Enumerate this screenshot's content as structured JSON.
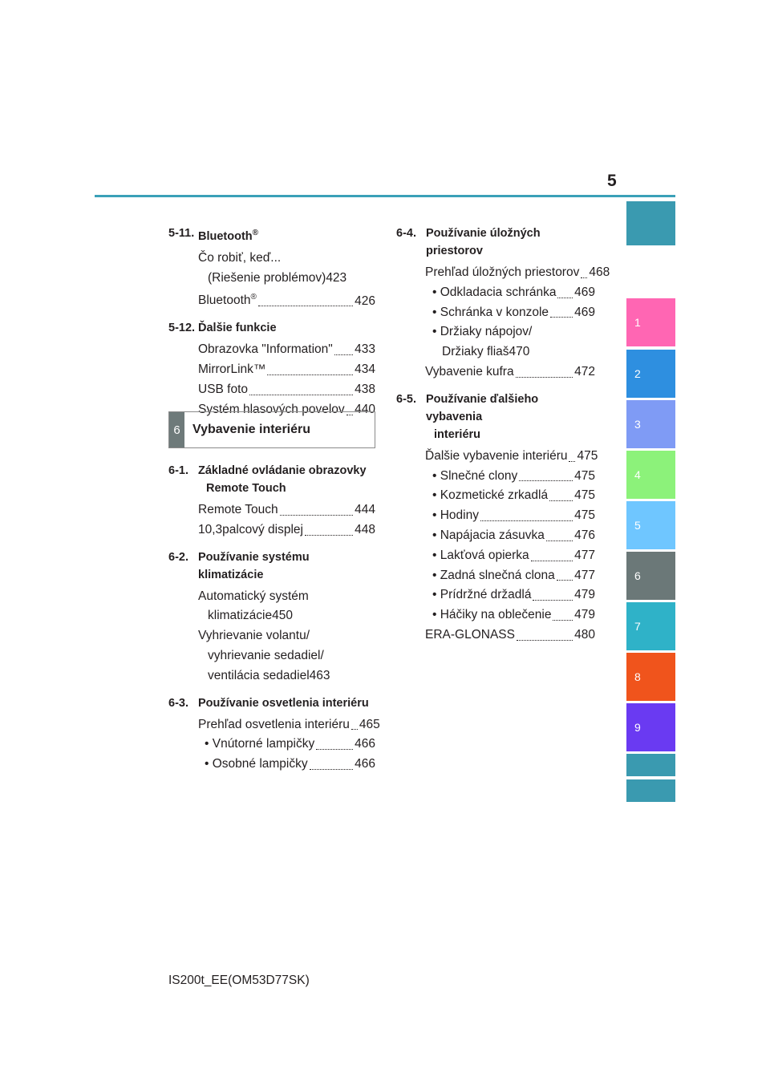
{
  "header": {
    "page_number": "5"
  },
  "left_column": {
    "sections": [
      {
        "number": "5-11.",
        "title": "Bluetooth",
        "title_sup": "®",
        "entries": [
          {
            "lines": [
              "Čo robiť, keď...",
              "(Riešenie problémov)"
            ],
            "page": "423"
          },
          {
            "label": "Bluetooth",
            "sup": "®",
            "page": "426"
          }
        ]
      },
      {
        "number": "5-12.",
        "title": "Ďalšie funkcie",
        "entries": [
          {
            "label": "Obrazovka \"Information\"",
            "page": "433"
          },
          {
            "label": "MirrorLink™",
            "page": "434"
          },
          {
            "label": "USB foto",
            "page": "438"
          },
          {
            "label": "Systém hlasových povelov",
            "page": "440"
          }
        ]
      }
    ]
  },
  "chapter": {
    "number": "6",
    "title": "Vybavenie interiéru"
  },
  "left_column_b": {
    "sections": [
      {
        "number": "6-1.",
        "title_lines": [
          "Základné ovládanie obrazovky",
          "Remote Touch"
        ],
        "entries": [
          {
            "label": "Remote Touch",
            "page": "444"
          },
          {
            "label": "10,3palcový displej",
            "page": "448"
          }
        ]
      },
      {
        "number": "6-2.",
        "title_lines": [
          "Používanie systému klimatizácie"
        ],
        "entries": [
          {
            "lines": [
              "Automatický systém",
              "klimatizácie"
            ],
            "page": "450"
          },
          {
            "lines": [
              "Vyhrievanie volantu/",
              "vyhrievanie sedadiel/",
              "ventilácia sedadiel"
            ],
            "page": "463"
          }
        ]
      },
      {
        "number": "6-3.",
        "title_lines": [
          "Používanie osvetlenia interiéru"
        ],
        "entries": [
          {
            "label": "Prehľad osvetlenia interiéru",
            "page": "465"
          },
          {
            "label": "• Vnútorné lampičky",
            "page": "466",
            "bullet": true
          },
          {
            "label": "• Osobné lampičky",
            "page": "466",
            "bullet": true
          }
        ]
      }
    ]
  },
  "right_column": {
    "sections": [
      {
        "number": "6-4.",
        "title_lines": [
          "Používanie úložných priestorov"
        ],
        "entries": [
          {
            "label": "Prehľad úložných priestorov",
            "page": "468"
          },
          {
            "label": "• Odkladacia schránka",
            "page": "469",
            "bullet": true
          },
          {
            "label": "• Schránka v konzole",
            "page": "469",
            "bullet": true
          },
          {
            "lines": [
              "• Držiaky nápojov/",
              "Držiaky fliaš"
            ],
            "page": "470",
            "bullet": true
          },
          {
            "label": "Vybavenie kufra",
            "page": "472"
          }
        ]
      },
      {
        "number": "6-5.",
        "title_lines": [
          "Používanie ďalšieho vybavenia",
          "interiéru"
        ],
        "entries": [
          {
            "label": "Ďalšie vybavenie interiéru",
            "page": "475"
          },
          {
            "label": "• Slnečné clony",
            "page": "475",
            "bullet": true
          },
          {
            "label": "• Kozmetické zrkadlá",
            "page": "475",
            "bullet": true
          },
          {
            "label": "• Hodiny",
            "page": "475",
            "bullet": true
          },
          {
            "label": "• Napájacia zásuvka",
            "page": "476",
            "bullet": true
          },
          {
            "label": "• Lakťová opierka",
            "page": "477",
            "bullet": true
          },
          {
            "label": "• Zadná slnečná clona",
            "page": "477",
            "bullet": true
          },
          {
            "label": "• Prídržné držadlá",
            "page": "479",
            "bullet": true
          },
          {
            "label": "• Háčiky na oblečenie",
            "page": "479",
            "bullet": true
          },
          {
            "label": "ERA-GLONASS",
            "page": "480"
          }
        ]
      }
    ]
  },
  "side_tabs": [
    {
      "label": "",
      "color": "#3a9ab0"
    },
    {
      "label": "1",
      "color": "#ff66b3"
    },
    {
      "label": "2",
      "color": "#2e8fe0"
    },
    {
      "label": "3",
      "color": "#7f9bf5"
    },
    {
      "label": "4",
      "color": "#8cf27a"
    },
    {
      "label": "5",
      "color": "#6fc6ff"
    },
    {
      "label": "6",
      "color": "#6b7878"
    },
    {
      "label": "7",
      "color": "#2fb2c8"
    },
    {
      "label": "8",
      "color": "#f0541c"
    },
    {
      "label": "9",
      "color": "#6a3af2"
    },
    {
      "label": "",
      "color": "#3a9ab0"
    },
    {
      "label": "",
      "color": "#3a9ab0"
    }
  ],
  "footer": {
    "doc_code": "IS200t_EE(OM53D77SK)"
  }
}
